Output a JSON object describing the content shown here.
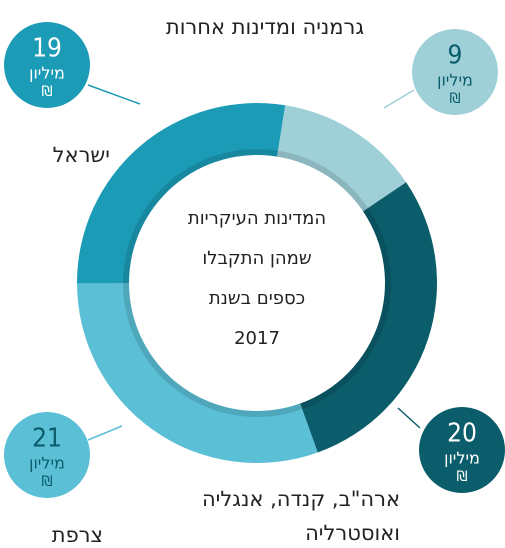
{
  "chart_data": {
    "type": "donut",
    "title_lines": [
      "המדינות העיקריות",
      "שמהן התקבלו",
      "כספים בשנת",
      "2017"
    ],
    "categories": [
      "גרמניה ומדינות אחרות",
      "ארה\"ב, קנדה, אנגליה ואוסטרליה",
      "צרפת",
      "ישראל"
    ],
    "values": [
      9,
      20,
      21,
      19
    ],
    "colors": [
      "#9fd0d8",
      "#0b5d6b",
      "#5bbfd6",
      "#1b9bb6"
    ],
    "label_colors": [
      "#0b5d6b",
      "#ffffff",
      "#0b5d6b",
      "#ffffff"
    ],
    "unit": "מיליון",
    "currency": "₪",
    "start_angle": 9
  }
}
